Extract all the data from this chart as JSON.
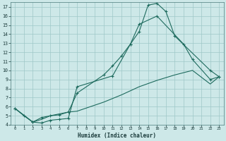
{
  "xlabel": "Humidex (Indice chaleur)",
  "background_color": "#cde8e8",
  "grid_color": "#9ec8c8",
  "line_color": "#1e6b5e",
  "xlim": [
    -0.5,
    23.5
  ],
  "ylim": [
    4,
    17.5
  ],
  "xticks": [
    0,
    1,
    2,
    3,
    4,
    5,
    6,
    7,
    8,
    9,
    10,
    11,
    12,
    13,
    14,
    15,
    16,
    17,
    18,
    19,
    20,
    21,
    22,
    23
  ],
  "yticks": [
    4,
    5,
    6,
    7,
    8,
    9,
    10,
    11,
    12,
    13,
    14,
    15,
    16,
    17
  ],
  "curve1_x": [
    0,
    1,
    2,
    3,
    4,
    5,
    6,
    7,
    11,
    13,
    14,
    15,
    16,
    17,
    18,
    22,
    23
  ],
  "curve1_y": [
    5.8,
    5.0,
    4.3,
    4.2,
    4.5,
    4.6,
    4.7,
    8.2,
    9.4,
    12.9,
    14.3,
    17.2,
    17.4,
    16.5,
    13.8,
    10.0,
    9.3
  ],
  "curve2_x": [
    0,
    2,
    3,
    4,
    5,
    6,
    7,
    10,
    11,
    12,
    13,
    14,
    16,
    19,
    20,
    22,
    23
  ],
  "curve2_y": [
    5.8,
    4.3,
    4.8,
    5.0,
    5.1,
    5.4,
    7.5,
    9.5,
    10.5,
    11.6,
    12.9,
    15.1,
    16.0,
    12.9,
    11.2,
    9.0,
    9.3
  ],
  "curve3_x": [
    0,
    2,
    3,
    4,
    5,
    6,
    7,
    10,
    12,
    14,
    16,
    18,
    20,
    22,
    23
  ],
  "curve3_y": [
    5.8,
    4.3,
    4.6,
    5.0,
    5.2,
    5.4,
    5.5,
    6.5,
    7.3,
    8.2,
    8.9,
    9.5,
    10.0,
    8.5,
    9.3
  ]
}
